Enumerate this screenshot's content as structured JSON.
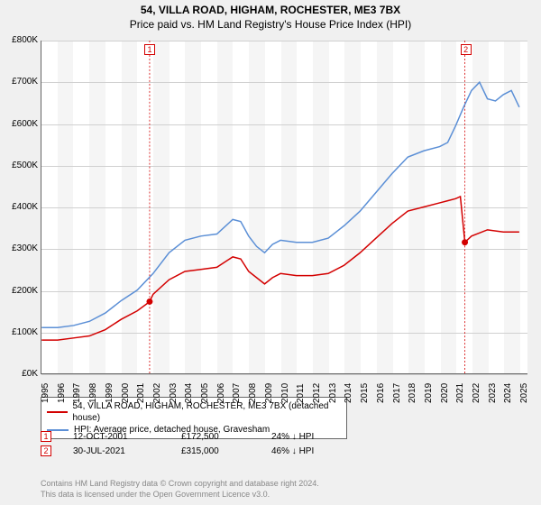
{
  "title": "54, VILLA ROAD, HIGHAM, ROCHESTER, ME3 7BX",
  "subtitle": "Price paid vs. HM Land Registry's House Price Index (HPI)",
  "chart": {
    "type": "line",
    "background_color": "#ffffff",
    "grid_color": "#d0d0d0",
    "axis_color": "#666666",
    "band_color": "#f5f5f5",
    "ylim": [
      0,
      800
    ],
    "ytick_step": 100,
    "ytick_labels": [
      "£0K",
      "£100K",
      "£200K",
      "£300K",
      "£400K",
      "£500K",
      "£600K",
      "£700K",
      "£800K"
    ],
    "xlim": [
      1995,
      2025.5
    ],
    "xtick_labels": [
      "1995",
      "1996",
      "1997",
      "1998",
      "1999",
      "2000",
      "2001",
      "2002",
      "2003",
      "2004",
      "2005",
      "2006",
      "2007",
      "2008",
      "2009",
      "2010",
      "2011",
      "2012",
      "2013",
      "2014",
      "2015",
      "2016",
      "2017",
      "2018",
      "2019",
      "2020",
      "2021",
      "2022",
      "2023",
      "2024",
      "2025"
    ],
    "series": [
      {
        "name": "property",
        "color": "#d30000",
        "width": 1.5,
        "points": [
          [
            1995,
            80
          ],
          [
            1996,
            80
          ],
          [
            1997,
            85
          ],
          [
            1998,
            90
          ],
          [
            1999,
            105
          ],
          [
            2000,
            130
          ],
          [
            2001,
            150
          ],
          [
            2001.78,
            172
          ],
          [
            2002,
            190
          ],
          [
            2003,
            225
          ],
          [
            2004,
            245
          ],
          [
            2005,
            250
          ],
          [
            2006,
            255
          ],
          [
            2007,
            280
          ],
          [
            2007.5,
            275
          ],
          [
            2008,
            245
          ],
          [
            2008.5,
            230
          ],
          [
            2009,
            215
          ],
          [
            2009.5,
            230
          ],
          [
            2010,
            240
          ],
          [
            2011,
            235
          ],
          [
            2012,
            235
          ],
          [
            2013,
            240
          ],
          [
            2014,
            260
          ],
          [
            2015,
            290
          ],
          [
            2016,
            325
          ],
          [
            2017,
            360
          ],
          [
            2018,
            390
          ],
          [
            2019,
            400
          ],
          [
            2020,
            410
          ],
          [
            2020.5,
            415
          ],
          [
            2021,
            420
          ],
          [
            2021.3,
            425
          ],
          [
            2021.58,
            315
          ],
          [
            2022,
            330
          ],
          [
            2023,
            345
          ],
          [
            2024,
            340
          ],
          [
            2025,
            340
          ]
        ]
      },
      {
        "name": "hpi",
        "color": "#5b8fd6",
        "width": 1.5,
        "points": [
          [
            1995,
            110
          ],
          [
            1996,
            110
          ],
          [
            1997,
            115
          ],
          [
            1998,
            125
          ],
          [
            1999,
            145
          ],
          [
            2000,
            175
          ],
          [
            2001,
            200
          ],
          [
            2002,
            240
          ],
          [
            2003,
            290
          ],
          [
            2004,
            320
          ],
          [
            2005,
            330
          ],
          [
            2006,
            335
          ],
          [
            2007,
            370
          ],
          [
            2007.5,
            365
          ],
          [
            2008,
            330
          ],
          [
            2008.5,
            305
          ],
          [
            2009,
            290
          ],
          [
            2009.5,
            310
          ],
          [
            2010,
            320
          ],
          [
            2011,
            315
          ],
          [
            2012,
            315
          ],
          [
            2013,
            325
          ],
          [
            2014,
            355
          ],
          [
            2015,
            390
          ],
          [
            2016,
            435
          ],
          [
            2017,
            480
          ],
          [
            2018,
            520
          ],
          [
            2019,
            535
          ],
          [
            2020,
            545
          ],
          [
            2020.5,
            555
          ],
          [
            2021,
            595
          ],
          [
            2021.5,
            640
          ],
          [
            2022,
            680
          ],
          [
            2022.5,
            700
          ],
          [
            2023,
            660
          ],
          [
            2023.5,
            655
          ],
          [
            2024,
            670
          ],
          [
            2024.5,
            680
          ],
          [
            2025,
            640
          ]
        ]
      }
    ],
    "sale_markers": [
      {
        "id": "1",
        "x": 2001.78,
        "y": 172.5,
        "dot_color": "#d30000"
      },
      {
        "id": "2",
        "x": 2021.58,
        "y": 315,
        "dot_color": "#d30000"
      }
    ]
  },
  "legend": {
    "items": [
      {
        "color": "#d30000",
        "label": "54, VILLA ROAD, HIGHAM, ROCHESTER, ME3 7BX (detached house)"
      },
      {
        "color": "#5b8fd6",
        "label": "HPI: Average price, detached house, Gravesham"
      }
    ]
  },
  "transactions": [
    {
      "id": "1",
      "date": "12-OCT-2001",
      "price": "£172,500",
      "hpi": "24% ↓ HPI"
    },
    {
      "id": "2",
      "date": "30-JUL-2021",
      "price": "£315,000",
      "hpi": "46% ↓ HPI"
    }
  ],
  "footer": {
    "line1": "Contains HM Land Registry data © Crown copyright and database right 2024.",
    "line2": "This data is licensed under the Open Government Licence v3.0."
  }
}
